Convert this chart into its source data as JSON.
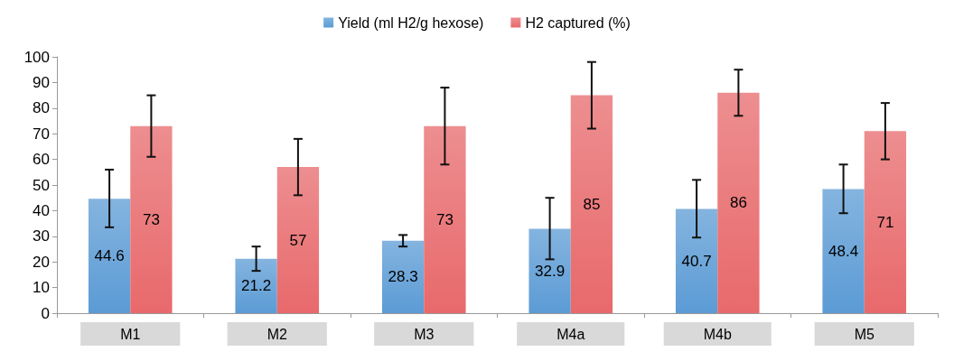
{
  "chart_data": {
    "type": "bar",
    "categories": [
      "M1",
      "M2",
      "M3",
      "M4a",
      "M4b",
      "M5"
    ],
    "series": [
      {
        "name": "Yield (ml H2/g hexose)",
        "color": "#5b9bd5",
        "values": [
          44.6,
          21.2,
          28.3,
          32.9,
          40.7,
          48.4
        ],
        "errors": [
          [
            33.5,
            56
          ],
          [
            16.5,
            26
          ],
          [
            26,
            30.5
          ],
          [
            21,
            45
          ],
          [
            29.5,
            52
          ],
          [
            39,
            58
          ]
        ]
      },
      {
        "name": "H2 captured (%)",
        "color": "#e8696b",
        "values": [
          73,
          57,
          73,
          85,
          86,
          71
        ],
        "errors": [
          [
            61,
            85
          ],
          [
            46,
            68
          ],
          [
            58,
            88
          ],
          [
            72,
            98
          ],
          [
            77,
            95
          ],
          [
            60,
            82
          ]
        ]
      }
    ],
    "ylim": [
      0,
      100
    ],
    "yticks": [
      0,
      10,
      20,
      30,
      40,
      50,
      60,
      70,
      80,
      90,
      100
    ],
    "grid": false,
    "legend": "top",
    "data_labels": true
  }
}
